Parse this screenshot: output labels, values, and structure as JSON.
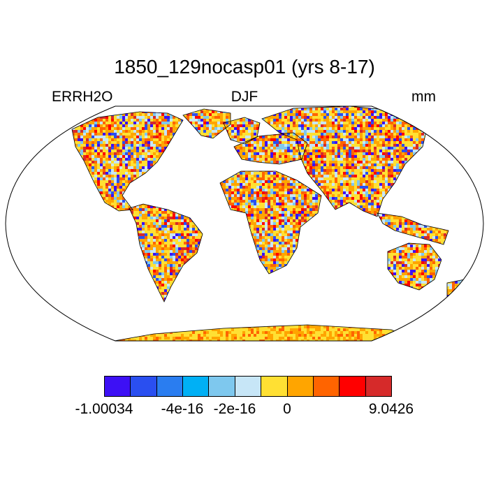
{
  "title": "1850_129nocasp01 (yrs 8-17)",
  "left_label": "ERRH2O",
  "center_label": "DJF",
  "right_label": "mm",
  "colorbar": {
    "colors": [
      "#3d10f5",
      "#2a4ff0",
      "#2a7df0",
      "#00b0f5",
      "#7ec8ee",
      "#c7e6f7",
      "#ffe033",
      "#ffa500",
      "#ff6400",
      "#ff0000",
      "#d62a2a"
    ],
    "labels": [
      "-1.00034",
      "-4e-16",
      "-2e-16",
      "0",
      "9.0426"
    ]
  },
  "map": {
    "projection": "Robinson",
    "land_palette_weights": [
      {
        "color": "#ffe033",
        "w": 0.26
      },
      {
        "color": "#ffa500",
        "w": 0.22
      },
      {
        "color": "#ff6400",
        "w": 0.13
      },
      {
        "color": "#c7e6f7",
        "w": 0.12
      },
      {
        "color": "#7ec8ee",
        "w": 0.06
      },
      {
        "color": "#2a4ff0",
        "w": 0.06
      },
      {
        "color": "#3d10f5",
        "w": 0.05
      },
      {
        "color": "#ff0000",
        "w": 0.05
      },
      {
        "color": "#d62a2a",
        "w": 0.05
      }
    ]
  }
}
